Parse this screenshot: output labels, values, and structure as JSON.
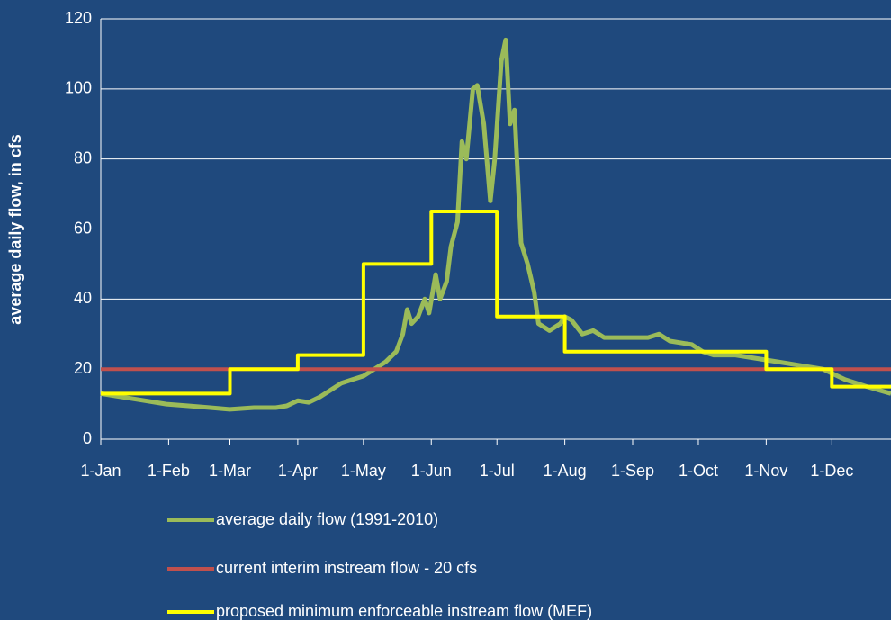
{
  "chart_data": {
    "type": "line",
    "ylabel": "average daily flow, in cfs",
    "xlim": [
      0,
      361
    ],
    "ylim": [
      0,
      120
    ],
    "yticks": [
      0,
      20,
      40,
      60,
      80,
      100,
      120
    ],
    "xticks": [
      {
        "value": 0,
        "label": "1-Jan"
      },
      {
        "value": 31,
        "label": "1-Feb"
      },
      {
        "value": 59,
        "label": "1-Mar"
      },
      {
        "value": 90,
        "label": "1-Apr"
      },
      {
        "value": 120,
        "label": "1-May"
      },
      {
        "value": 151,
        "label": "1-Jun"
      },
      {
        "value": 181,
        "label": "1-Jul"
      },
      {
        "value": 212,
        "label": "1-Aug"
      },
      {
        "value": 243,
        "label": "1-Sep"
      },
      {
        "value": 273,
        "label": "1-Oct"
      },
      {
        "value": 304,
        "label": "1-Nov"
      },
      {
        "value": 334,
        "label": "1-Dec"
      }
    ],
    "grid": true,
    "legend": "bottom",
    "series": [
      {
        "name": "average daily flow (1991-2010)",
        "color": "#9bbb59",
        "x": [
          0,
          10,
          20,
          30,
          40,
          50,
          59,
          70,
          80,
          85,
          90,
          95,
          100,
          105,
          110,
          115,
          120,
          125,
          130,
          135,
          138,
          140,
          142,
          145,
          148,
          150,
          153,
          155,
          158,
          160,
          163,
          165,
          167,
          170,
          172,
          175,
          178,
          180,
          183,
          185,
          187,
          189,
          192,
          195,
          198,
          200,
          205,
          210,
          212,
          215,
          220,
          225,
          230,
          240,
          250,
          255,
          260,
          270,
          275,
          280,
          290,
          300,
          310,
          320,
          330,
          340,
          350,
          361
        ],
        "values": [
          13,
          12,
          11,
          10,
          9.5,
          9,
          8.5,
          9,
          9,
          9.5,
          11,
          10.5,
          12,
          14,
          16,
          17,
          18,
          20,
          22,
          25,
          30,
          37,
          33,
          35,
          40,
          36,
          47,
          40,
          45,
          55,
          62,
          85,
          80,
          100,
          101,
          90,
          68,
          80,
          108,
          114,
          90,
          94,
          56,
          50,
          42,
          33,
          31,
          33,
          35,
          34,
          30,
          31,
          29,
          29,
          29,
          30,
          28,
          27,
          25,
          24,
          24,
          23,
          22,
          21,
          20,
          17,
          15,
          13
        ]
      },
      {
        "name": "current interim instream flow - 20 cfs",
        "color": "#c0504d",
        "x": [
          0,
          361
        ],
        "values": [
          20,
          20
        ]
      },
      {
        "name": "proposed minimum enforceable instream flow (MEF)",
        "color": "#ffff00",
        "x": [
          0,
          59,
          59,
          90,
          90,
          120,
          120,
          151,
          151,
          181,
          181,
          212,
          212,
          304,
          304,
          334,
          334,
          361
        ],
        "values": [
          13,
          13,
          20,
          20,
          24,
          24,
          50,
          50,
          65,
          65,
          35,
          35,
          25,
          25,
          20,
          20,
          15,
          15
        ]
      }
    ]
  }
}
